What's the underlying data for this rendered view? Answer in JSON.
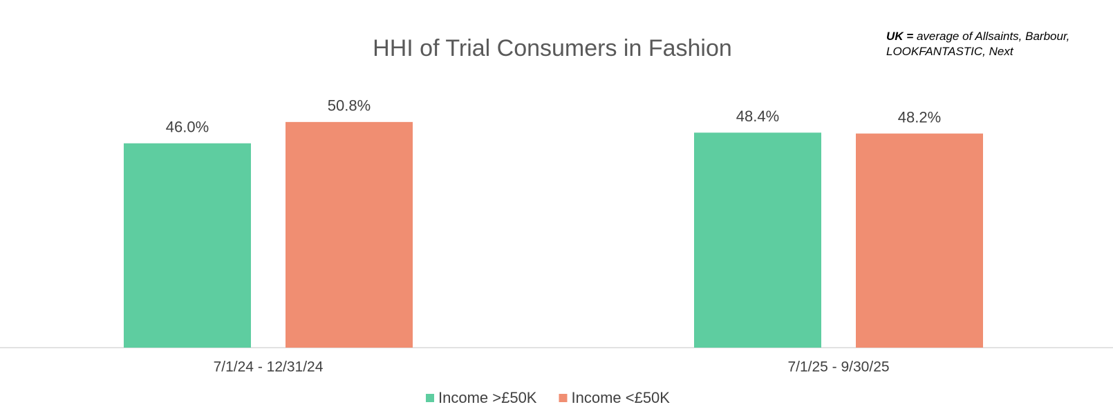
{
  "chart_data": {
    "type": "bar",
    "title": "HHI of Trial Consumers in Fashion",
    "annotation": {
      "bold": "UK =",
      "text": "average of Allsaints, Barbour, LOOKFANTASTIC, Next"
    },
    "categories": [
      "7/1/24 - 12/31/24",
      "7/1/25 - 9/30/25"
    ],
    "series": [
      {
        "name": "Income >£50K",
        "color": "#5ecda0",
        "values": [
          46.0,
          48.4
        ],
        "value_labels": [
          "46.0%",
          "48.4%"
        ]
      },
      {
        "name": "Income <£50K",
        "color": "#f08e72",
        "values": [
          50.8,
          48.2
        ],
        "value_labels": [
          "50.8%",
          "48.2%"
        ]
      }
    ],
    "legend": "bottom",
    "grid": false
  }
}
